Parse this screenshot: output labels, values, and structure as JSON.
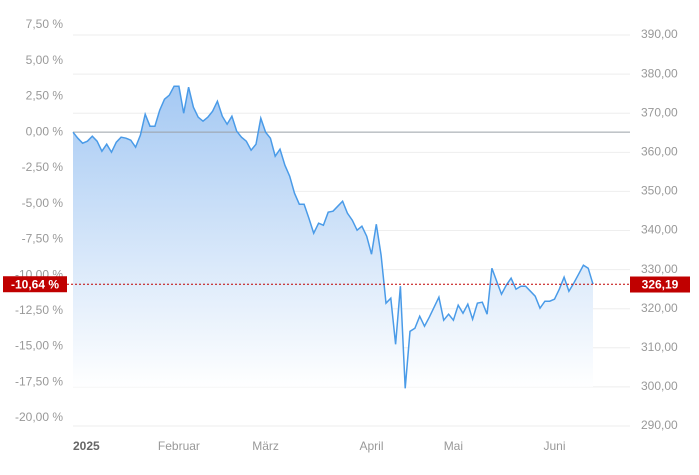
{
  "chart_data": {
    "type": "area",
    "categories": [
      "2025",
      null,
      null,
      null,
      null,
      null,
      null,
      null,
      null,
      null,
      null,
      null,
      null,
      null,
      null,
      null,
      null,
      null,
      null,
      null,
      null,
      null,
      "Februar",
      null,
      null,
      null,
      null,
      null,
      null,
      null,
      null,
      null,
      null,
      null,
      null,
      null,
      null,
      null,
      null,
      null,
      "März",
      null,
      null,
      null,
      null,
      null,
      null,
      null,
      null,
      null,
      null,
      null,
      null,
      null,
      null,
      null,
      null,
      null,
      null,
      null,
      null,
      null,
      "April",
      null,
      null,
      null,
      null,
      null,
      null,
      null,
      null,
      null,
      null,
      null,
      null,
      null,
      null,
      null,
      null,
      "Mai",
      null,
      null,
      null,
      null,
      null,
      null,
      null,
      null,
      null,
      null,
      null,
      null,
      null,
      null,
      null,
      null,
      null,
      null,
      null,
      null,
      "Juni",
      null,
      null,
      null,
      null,
      null,
      null,
      null,
      null
    ],
    "series": [
      {
        "color": "#4a9be8",
        "values": [
          0,
          -0.42,
          -0.77,
          -0.63,
          -0.28,
          -0.63,
          -1.33,
          -0.84,
          -1.4,
          -0.7,
          -0.35,
          -0.42,
          -0.56,
          -1.05,
          -0.21,
          1.26,
          0.42,
          0.42,
          1.54,
          2.31,
          2.59,
          3.22,
          3.22,
          1.33,
          3.15,
          1.75,
          1.05,
          0.77,
          1.05,
          1.47,
          2.17,
          1.12,
          0.56,
          1.12,
          0.07,
          -0.35,
          -0.63,
          -1.26,
          -0.84,
          0.98,
          0,
          -0.42,
          -1.68,
          -1.19,
          -2.31,
          -3.08,
          -4.27,
          -5.04,
          -5.04,
          -6.02,
          -7.07,
          -6.37,
          -6.51,
          -5.6,
          -5.53,
          -5.18,
          -4.83,
          -5.67,
          -6.16,
          -6.86,
          -6.58,
          -7.28,
          -8.54,
          -6.44,
          -8.61,
          -11.97,
          -11.62,
          -14.84,
          -10.78,
          -17.92,
          -13.93,
          -13.72,
          -12.88,
          -13.58,
          -12.95,
          -12.25,
          -11.55,
          -13.16,
          -12.74,
          -13.16,
          -12.11,
          -12.67,
          -12.04,
          -13.09,
          -11.97,
          -11.9,
          -12.74,
          -9.52,
          -10.43,
          -11.34,
          -10.71,
          -10.22,
          -10.99,
          -10.78,
          -10.78,
          -11.13,
          -11.48,
          -12.32,
          -11.83,
          -11.83,
          -11.69,
          -10.99,
          -10.15,
          -11.13,
          -10.57,
          -9.94,
          -9.31,
          -9.52,
          -10.64
        ]
      }
    ],
    "ylim": [
      -20.84,
      7.85
    ],
    "yticks": [
      {
        "value": 7.5,
        "label": "7,50 %"
      },
      {
        "value": 5,
        "label": "5,00 %"
      },
      {
        "value": 2.5,
        "label": "2,50 %"
      },
      {
        "value": 0,
        "label": "0,00 %"
      },
      {
        "value": -2.5,
        "label": "-2,50 %"
      },
      {
        "value": -5,
        "label": "-5,00 %"
      },
      {
        "value": -7.5,
        "label": "-7,50 %"
      },
      {
        "value": -10,
        "label": "-10,00 %"
      },
      {
        "value": -12.5,
        "label": "-12,50 %"
      },
      {
        "value": -15,
        "label": "-15,00 %"
      },
      {
        "value": -17.5,
        "label": "-17,50 %"
      },
      {
        "value": -20,
        "label": "-20,00 %"
      }
    ],
    "y2lim": [
      288.98,
      393.84
    ],
    "y2ticks": [
      {
        "value": 390,
        "label": "390,00"
      },
      {
        "value": 380,
        "label": "380,00"
      },
      {
        "value": 370,
        "label": "370,00"
      },
      {
        "value": 360,
        "label": "360,00"
      },
      {
        "value": 350,
        "label": "350,00"
      },
      {
        "value": 340,
        "label": "340,00"
      },
      {
        "value": 330,
        "label": "330,00"
      },
      {
        "value": 320,
        "label": "320,00"
      },
      {
        "value": 310,
        "label": "310,00"
      },
      {
        "value": 300,
        "label": "300,00"
      },
      {
        "value": 290,
        "label": "290,00"
      }
    ],
    "grid": true,
    "current_value": {
      "value": -10.64,
      "label": "-10,64 %"
    },
    "current_price": {
      "value": 326.19,
      "label": "326,19"
    }
  }
}
